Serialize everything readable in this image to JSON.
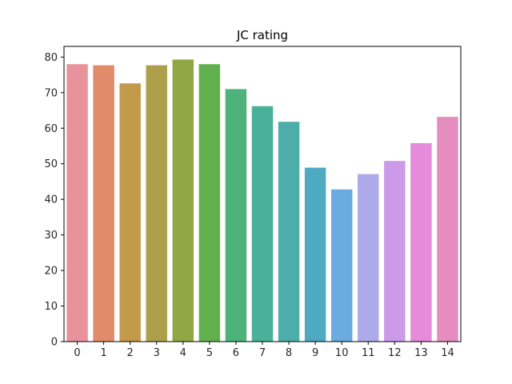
{
  "chart_data": {
    "type": "bar",
    "title": "JC rating",
    "xlabel": "",
    "ylabel": "",
    "categories": [
      "0",
      "1",
      "2",
      "3",
      "4",
      "5",
      "6",
      "7",
      "8",
      "9",
      "10",
      "11",
      "12",
      "13",
      "14"
    ],
    "values": [
      78.0,
      77.7,
      72.6,
      77.7,
      79.3,
      78.0,
      71.0,
      66.2,
      61.8,
      48.9,
      42.8,
      47.1,
      50.8,
      55.8,
      63.2
    ],
    "ylim": [
      0,
      83
    ],
    "yticks": [
      0,
      10,
      20,
      30,
      40,
      50,
      60,
      70,
      80
    ],
    "grid": false,
    "legend": "none",
    "colors": [
      "#e8939b",
      "#e08b6a",
      "#c3994a",
      "#aea04b",
      "#91a745",
      "#60b04d",
      "#4db37a",
      "#4ab09a",
      "#4cadaa",
      "#4fa9c0",
      "#6aabe0",
      "#aeaaea",
      "#cc9ae9",
      "#e68adb",
      "#e58dbf"
    ]
  }
}
